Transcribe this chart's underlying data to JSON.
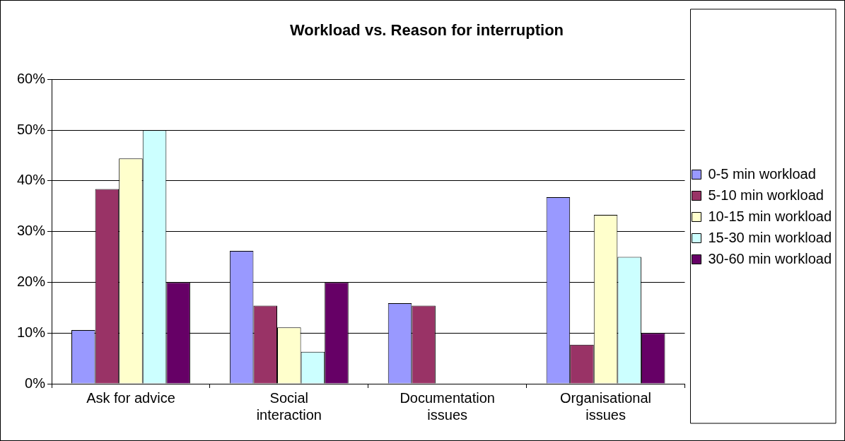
{
  "chart_data": {
    "type": "bar",
    "title": "Workload vs. Reason for interruption",
    "categories": [
      "Ask for advice",
      "Social interaction",
      "Documentation issues",
      "Organisational issues"
    ],
    "series": [
      {
        "name": "0-5 min workload",
        "color": "#9999ff",
        "values": [
          10.6,
          26.2,
          15.9,
          36.8
        ]
      },
      {
        "name": "5-10 min workload",
        "color": "#993366",
        "values": [
          38.4,
          15.4,
          15.4,
          7.7
        ]
      },
      {
        "name": "10-15 min workload",
        "color": "#ffffcc",
        "values": [
          44.4,
          11.1,
          0,
          33.3
        ]
      },
      {
        "name": "15-30 min workload",
        "color": "#ccffff",
        "values": [
          50,
          6.3,
          0,
          25
        ]
      },
      {
        "name": "30-60 min workload",
        "color": "#660066",
        "values": [
          20,
          20,
          0,
          10
        ]
      }
    ],
    "ylim": [
      0,
      60
    ],
    "yticks": [
      {
        "value": 0,
        "label": "0%"
      },
      {
        "value": 10,
        "label": "10%"
      },
      {
        "value": 20,
        "label": "20%"
      },
      {
        "value": 30,
        "label": "30%"
      },
      {
        "value": 40,
        "label": "40%"
      },
      {
        "value": 50,
        "label": "50%"
      },
      {
        "value": 60,
        "label": "60%"
      }
    ],
    "grid": "y",
    "legend": "right"
  }
}
